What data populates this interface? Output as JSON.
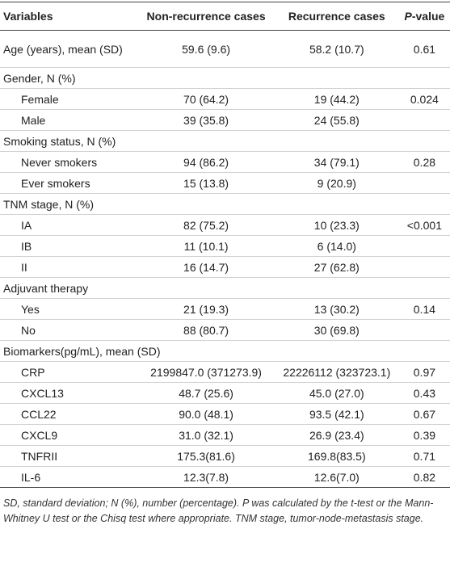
{
  "table": {
    "header": [
      "Variables",
      "Non-recurrence cases",
      "Recurrence cases",
      "P-value"
    ],
    "body": [
      {
        "cells": [
          "Age (years), mean (SD)",
          "59.6 (9.6)",
          "58.2 (10.7)",
          "0.61"
        ]
      },
      {
        "label": "Gender, N (%)",
        "rows": [
          [
            "Female",
            "70 (64.2)",
            "19 (44.2)",
            "0.024"
          ],
          [
            "Male",
            "39 (35.8)",
            "24 (55.8)"
          ]
        ]
      },
      {
        "label": "Smoking status, N (%)",
        "rows": [
          [
            "Never smokers",
            "94 (86.2)",
            "34 (79.1)",
            "0.28"
          ],
          [
            "Ever smokers",
            "15 (13.8)",
            "9 (20.9)"
          ]
        ]
      },
      {
        "label": "TNM stage, N (%)",
        "rows": [
          [
            "IA",
            "82 (75.2)",
            "10 (23.3)",
            "<0.001"
          ],
          [
            "IB",
            "11 (10.1)",
            "6 (14.0)"
          ],
          [
            "II",
            "16 (14.7)",
            "27 (62.8)"
          ]
        ]
      },
      {
        "label": "Adjuvant therapy",
        "rows": [
          [
            "Yes",
            "21 (19.3)",
            "13 (30.2)",
            "0.14"
          ],
          [
            "No",
            "88 (80.7)",
            "30 (69.8)"
          ]
        ]
      },
      {
        "label": "Biomarkers(pg/mL), mean (SD)",
        "rows": [
          [
            "CRP",
            "2199847.0 (371273.9)",
            "22226112 (323723.1)",
            "0.97"
          ],
          [
            "CXCL13",
            "48.7 (25.6)",
            "45.0 (27.0)",
            "0.43"
          ],
          [
            "CCL22",
            "90.0 (48.1)",
            "93.5 (42.1)",
            "0.67"
          ],
          [
            "CXCL9",
            "31.0 (32.1)",
            "26.9 (23.4)",
            "0.39"
          ],
          [
            "TNFRII",
            "175.3(81.6)",
            "169.8(83.5)",
            "0.71"
          ],
          [
            "IL-6",
            "12.3(7.8)",
            "12.6(7.0)",
            "0.82"
          ]
        ]
      }
    ]
  },
  "footnote": "SD, standard deviation; N (%), number (percentage). P was calculated by the t-test or the Mann-Whitney U test or the Chisq test where appropriate. TNM stage, tumor-node-metastasis stage."
}
